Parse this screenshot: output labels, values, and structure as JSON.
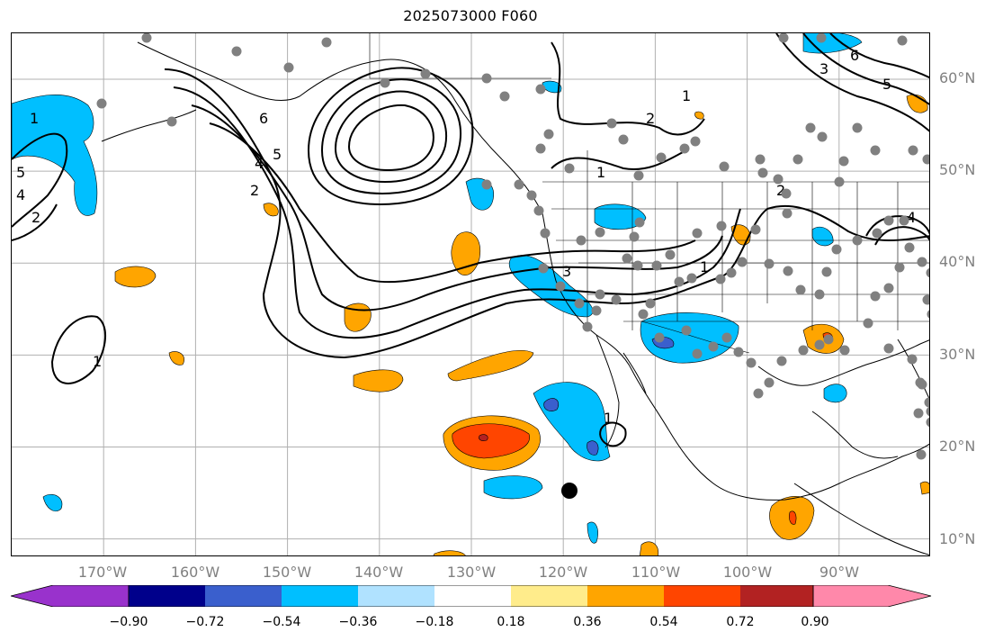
{
  "title": "2025073000 F060",
  "map": {
    "projection": "plate-carree",
    "lon_range": [
      -180,
      -80
    ],
    "lat_range": [
      8,
      65
    ],
    "field_type": "shaded anomaly with black contour lines",
    "land_outline_color": "#000000",
    "grid_color": "#b0b0b0",
    "station_marker_color": "#808080",
    "highlight_marker_color": "#000000"
  },
  "latitude_labels": [
    "60°N",
    "50°N",
    "40°N",
    "30°N",
    "20°N",
    "10°N"
  ],
  "longitude_labels": [
    "170°W",
    "160°W",
    "150°W",
    "140°W",
    "130°W",
    "120°W",
    "110°W",
    "100°W",
    "90°W"
  ],
  "contour_labels": [
    "1",
    "2",
    "3",
    "4",
    "5",
    "6"
  ],
  "colorbar": {
    "extend": "both",
    "tick_labels": [
      "−0.90",
      "−0.72",
      "−0.54",
      "−0.36",
      "−0.18",
      "0.18",
      "0.36",
      "0.54",
      "0.72",
      "0.90"
    ],
    "colors": [
      "#9932cc",
      "#00008b",
      "#3a5fcd",
      "#00bfff",
      "#b0e2ff",
      "#ffffff",
      "#ffec8b",
      "#ffa500",
      "#ff4500",
      "#b22222",
      "#ff88aa"
    ]
  }
}
